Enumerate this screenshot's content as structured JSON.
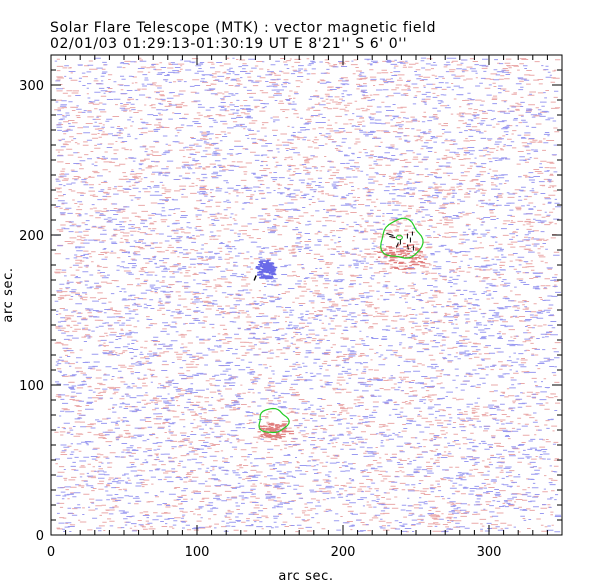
{
  "header": {
    "title_line1": "Solar Flare Telescope (MTK) : vector magnetic field",
    "title_line2": "02/01/03  01:29:13-01:30:19 UT    E 8'21''  S 6' 0''"
  },
  "axes": {
    "xlabel": "arc sec.",
    "ylabel": "arc sec.",
    "xlim": [
      0,
      350
    ],
    "ylim": [
      0,
      320
    ],
    "x_ticks": [
      0,
      100,
      200,
      300
    ],
    "y_ticks": [
      0,
      100,
      200,
      300
    ]
  },
  "features": {
    "blue_spot_center": [
      146,
      177
    ],
    "green_contours": [
      {
        "center": [
          240,
          197
        ],
        "rx": 14,
        "ry": 13
      },
      {
        "center": [
          152,
          76
        ],
        "rx": 10,
        "ry": 8
      }
    ]
  },
  "colors": {
    "positive_polarity": "#e8a0a0",
    "negative_polarity": "#8f8ff0",
    "contour": "#22cc22",
    "vector": "#000000",
    "axis": "#000000"
  }
}
